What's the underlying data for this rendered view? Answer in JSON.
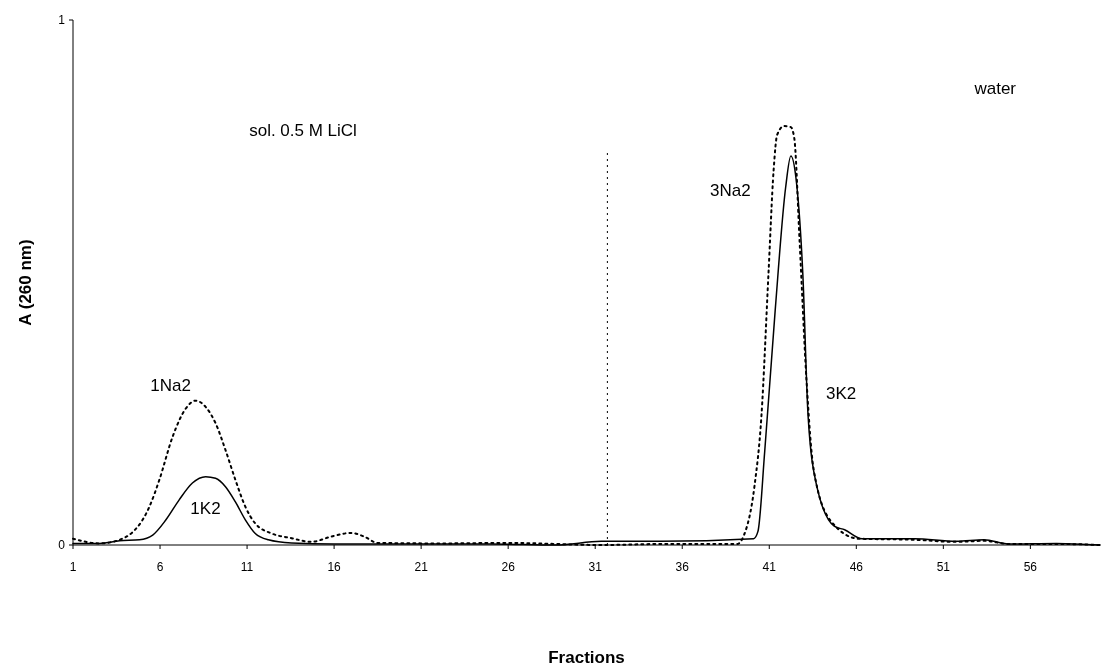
{
  "chart_data": {
    "type": "line",
    "xlabel": "Fractions",
    "ylabel": "A (260 nm)",
    "xlim": [
      1,
      60
    ],
    "xticks": [
      1,
      6,
      11,
      16,
      21,
      26,
      31,
      36,
      41,
      46,
      51,
      56
    ],
    "ylim": [
      0,
      1
    ],
    "yticks": [
      0,
      1
    ],
    "grid": false,
    "series": [
      {
        "color": "#000000",
        "line_style": "dotted",
        "x": [
          1,
          2.54,
          3.68,
          4.44,
          5.0,
          5.39,
          5.96,
          6.72,
          7.48,
          8.05,
          8.62,
          9.19,
          9.76,
          10.33,
          10.9,
          11.47,
          12.41,
          13.55,
          14.69,
          15.83,
          16.97,
          17.73,
          18.49,
          22,
          26,
          31.35,
          35,
          39.15,
          39.55,
          40.15,
          40.55,
          40.95,
          41.25,
          41.45,
          41.85,
          42.24,
          42.44,
          42.74,
          43.14,
          43.54,
          44.53,
          46.13,
          49.33,
          51.74,
          53.34,
          54.73,
          57.5,
          60
        ],
        "values": [
          0.012,
          0.003,
          0.01,
          0.025,
          0.048,
          0.073,
          0.124,
          0.206,
          0.26,
          0.275,
          0.263,
          0.232,
          0.181,
          0.124,
          0.073,
          0.041,
          0.022,
          0.013,
          0.006,
          0.016,
          0.023,
          0.016,
          0.004,
          0.003,
          0.004,
          0.0,
          0.002,
          0.002,
          0.019,
          0.112,
          0.246,
          0.514,
          0.714,
          0.781,
          0.798,
          0.796,
          0.774,
          0.58,
          0.313,
          0.146,
          0.046,
          0.012,
          0.01,
          0.006,
          0.008,
          0.002,
          0.002,
          0.0
        ]
      },
      {
        "color": "#000000",
        "line_style": "solid",
        "x": [
          1,
          2.54,
          3.68,
          4.82,
          5.58,
          6.34,
          7.1,
          7.86,
          8.62,
          9.19,
          9.76,
          10.33,
          10.9,
          11.47,
          12.22,
          13.55,
          16,
          20,
          25,
          28.75,
          31.35,
          34.7,
          40.1,
          40.35,
          40.74,
          41.34,
          41.94,
          42.24,
          42.53,
          42.93,
          43.23,
          43.73,
          44.73,
          45.33,
          46.33,
          49.33,
          51.74,
          53.34,
          54.73,
          57.5,
          60
        ],
        "values": [
          0.003,
          0.003,
          0.008,
          0.01,
          0.019,
          0.048,
          0.086,
          0.118,
          0.13,
          0.127,
          0.111,
          0.082,
          0.048,
          0.022,
          0.01,
          0.004,
          0.002,
          0.002,
          0.002,
          0.0,
          0.007,
          0.007,
          0.012,
          0.026,
          0.179,
          0.447,
          0.681,
          0.741,
          0.7,
          0.514,
          0.246,
          0.112,
          0.036,
          0.029,
          0.012,
          0.012,
          0.007,
          0.01,
          0.002,
          0.003,
          0.0
        ]
      }
    ],
    "ref_lines": [
      {
        "axis": "x",
        "value": 31.7,
        "color": "#000000",
        "line_style": "dotted"
      }
    ],
    "annotations": [
      "sol. 0.5 M LiCl",
      "water",
      "1Na2",
      "1K2",
      "3Na2",
      "3K2"
    ]
  }
}
